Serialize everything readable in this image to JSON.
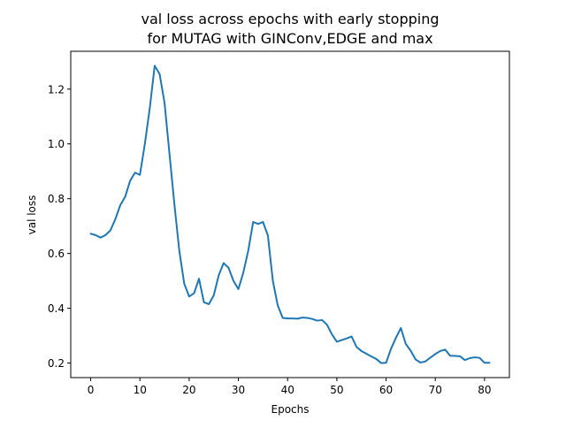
{
  "chart_data": {
    "type": "line",
    "title": "val loss across epochs with early stopping\nfor MUTAG with GINConv,EDGE and max",
    "title_lines": [
      "val loss across epochs with early stopping",
      "for MUTAG with GINConv,EDGE and max"
    ],
    "xlabel": "Epochs",
    "ylabel": "val loss",
    "xlim": [
      -4.05,
      85.05
    ],
    "ylim": [
      0.147,
      1.338
    ],
    "xticks": [
      0,
      10,
      20,
      30,
      40,
      50,
      60,
      70,
      80
    ],
    "yticks": [
      0.2,
      0.4,
      0.6,
      0.8,
      1.0,
      1.2
    ],
    "xtick_labels": [
      "0",
      "10",
      "20",
      "30",
      "40",
      "50",
      "60",
      "70",
      "80"
    ],
    "ytick_labels": [
      "0.2",
      "0.4",
      "0.6",
      "0.8",
      "1.0",
      "1.2"
    ],
    "grid": false,
    "line_color": "#1f77b4",
    "series": [
      {
        "x": [
          0,
          1,
          2,
          3,
          4,
          5,
          6,
          7,
          8,
          9,
          10,
          11,
          12,
          13,
          14,
          15,
          16,
          17,
          18,
          19,
          20,
          21,
          22,
          23,
          24,
          25,
          26,
          27,
          28,
          29,
          30,
          31,
          32,
          33,
          34,
          35,
          36,
          37,
          38,
          39,
          40,
          41,
          42,
          43,
          44,
          45,
          46,
          47,
          48,
          49,
          50,
          51,
          52,
          53,
          54,
          55,
          56,
          57,
          58,
          59,
          60,
          61,
          62,
          63,
          64,
          65,
          66,
          67,
          68,
          69,
          70,
          71,
          72,
          73,
          74,
          75,
          76,
          77,
          78,
          79,
          80,
          81
        ],
        "values": [
          0.672,
          0.667,
          0.658,
          0.667,
          0.684,
          0.725,
          0.776,
          0.807,
          0.865,
          0.895,
          0.887,
          1.0,
          1.13,
          1.285,
          1.255,
          1.15,
          0.965,
          0.78,
          0.61,
          0.49,
          0.443,
          0.455,
          0.508,
          0.422,
          0.415,
          0.447,
          0.52,
          0.565,
          0.548,
          0.5,
          0.47,
          0.53,
          0.61,
          0.715,
          0.708,
          0.715,
          0.665,
          0.5,
          0.41,
          0.365,
          0.363,
          0.363,
          0.362,
          0.366,
          0.365,
          0.361,
          0.355,
          0.357,
          0.34,
          0.305,
          0.278,
          0.284,
          0.29,
          0.297,
          0.259,
          0.244,
          0.234,
          0.224,
          0.215,
          0.2,
          0.201,
          0.252,
          0.292,
          0.328,
          0.27,
          0.245,
          0.213,
          0.202,
          0.206,
          0.22,
          0.233,
          0.244,
          0.249,
          0.227,
          0.226,
          0.225,
          0.211,
          0.218,
          0.221,
          0.219,
          0.201,
          0.201
        ]
      }
    ]
  }
}
